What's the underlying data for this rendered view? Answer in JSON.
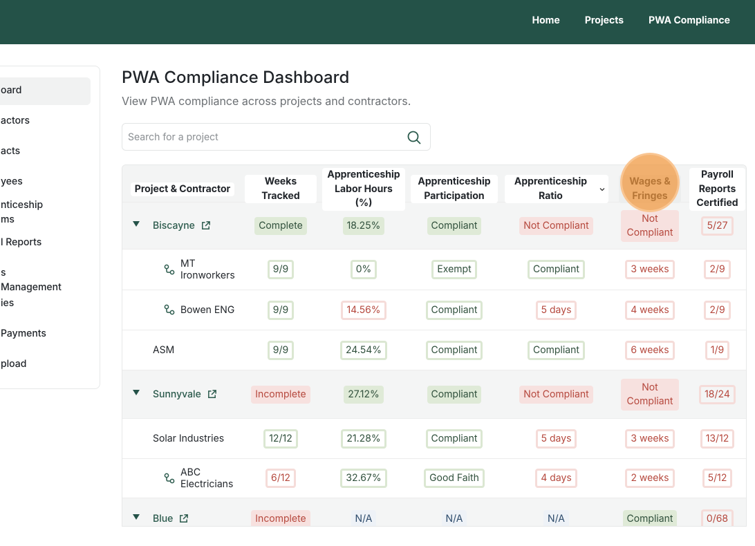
{
  "nav": {
    "items": [
      "Home",
      "Projects",
      "PWA Compliance"
    ]
  },
  "sidebar": {
    "items": [
      "oard",
      "actors",
      "acts",
      "yees",
      "nticeship ms",
      "l Reports",
      "s Management",
      "ies",
      "Payments",
      "pload"
    ],
    "active": 0
  },
  "header": {
    "title": "PWA Compliance Dashboard",
    "subtitle": "View PWA compliance across projects and contractors."
  },
  "search": {
    "placeholder": "Search for a project"
  },
  "table": {
    "columns": [
      "Project & Contractor",
      "Weeks Tracked",
      "Apprenticeship Labor Hours (%)",
      "Apprenticeship Participation",
      "Apprenticeship Ratio",
      "Wages & Fringes",
      "Payroll Reports Certified"
    ],
    "rows": [
      {
        "name": "Biscayne",
        "kind": "project",
        "cells": [
          {
            "text": "Complete",
            "tone": "good",
            "fill": true
          },
          {
            "text": "18.25%",
            "tone": "good",
            "fill": true
          },
          {
            "text": "Compliant",
            "tone": "good",
            "fill": true
          },
          {
            "text": "Not Compliant",
            "tone": "bad",
            "fill": true
          },
          {
            "text": "Not Compliant",
            "tone": "bad",
            "fill": true
          },
          {
            "text": "5/27",
            "tone": "bad",
            "fill": false
          }
        ]
      },
      {
        "name": "MT Ironworkers",
        "kind": "sub",
        "cells": [
          {
            "text": "9/9",
            "tone": "good",
            "fill": false
          },
          {
            "text": "0%",
            "tone": "good",
            "fill": false
          },
          {
            "text": "Exempt",
            "tone": "good",
            "fill": false
          },
          {
            "text": "Compliant",
            "tone": "good",
            "fill": false
          },
          {
            "text": "3 weeks",
            "tone": "bad",
            "fill": false
          },
          {
            "text": "2/9",
            "tone": "bad",
            "fill": false
          }
        ]
      },
      {
        "name": "Bowen ENG",
        "kind": "sub",
        "cells": [
          {
            "text": "9/9",
            "tone": "good",
            "fill": false
          },
          {
            "text": "14.56%",
            "tone": "bad",
            "fill": false
          },
          {
            "text": "Compliant",
            "tone": "good",
            "fill": false
          },
          {
            "text": "5 days",
            "tone": "bad",
            "fill": false
          },
          {
            "text": "4 weeks",
            "tone": "bad",
            "fill": false
          },
          {
            "text": "2/9",
            "tone": "bad",
            "fill": false
          }
        ]
      },
      {
        "name": "ASM",
        "kind": "plain",
        "cells": [
          {
            "text": "9/9",
            "tone": "good",
            "fill": false
          },
          {
            "text": "24.54%",
            "tone": "good",
            "fill": false
          },
          {
            "text": "Compliant",
            "tone": "good",
            "fill": false
          },
          {
            "text": "Compliant",
            "tone": "good",
            "fill": false
          },
          {
            "text": "6 weeks",
            "tone": "bad",
            "fill": false
          },
          {
            "text": "1/9",
            "tone": "bad",
            "fill": false
          }
        ]
      },
      {
        "name": "Sunnyvale",
        "kind": "project",
        "cells": [
          {
            "text": "Incomplete",
            "tone": "bad",
            "fill": true
          },
          {
            "text": "27.12%",
            "tone": "good",
            "fill": true
          },
          {
            "text": "Compliant",
            "tone": "good",
            "fill": true
          },
          {
            "text": "Not Compliant",
            "tone": "bad",
            "fill": true
          },
          {
            "text": "Not Compliant",
            "tone": "bad",
            "fill": true
          },
          {
            "text": "18/24",
            "tone": "bad",
            "fill": false
          }
        ]
      },
      {
        "name": "Solar Industries",
        "kind": "plain",
        "cells": [
          {
            "text": "12/12",
            "tone": "good",
            "fill": false
          },
          {
            "text": "21.28%",
            "tone": "good",
            "fill": false
          },
          {
            "text": "Compliant",
            "tone": "good",
            "fill": false
          },
          {
            "text": "5 days",
            "tone": "bad",
            "fill": false
          },
          {
            "text": "3 weeks",
            "tone": "bad",
            "fill": false
          },
          {
            "text": "13/12",
            "tone": "bad",
            "fill": false
          }
        ]
      },
      {
        "name": "ABC Electricians",
        "kind": "sub",
        "cells": [
          {
            "text": "6/12",
            "tone": "bad",
            "fill": false
          },
          {
            "text": "32.67%",
            "tone": "good",
            "fill": false
          },
          {
            "text": "Good Faith",
            "tone": "good",
            "fill": false
          },
          {
            "text": "4 days",
            "tone": "bad",
            "fill": false
          },
          {
            "text": "2 weeks",
            "tone": "bad",
            "fill": false
          },
          {
            "text": "5/12",
            "tone": "bad",
            "fill": false
          }
        ]
      },
      {
        "name": "Blue",
        "kind": "project",
        "cells": [
          {
            "text": "Incomplete",
            "tone": "bad",
            "fill": true
          },
          {
            "text": "N/A",
            "tone": "neutral",
            "fill": true
          },
          {
            "text": "N/A",
            "tone": "neutral",
            "fill": true
          },
          {
            "text": "N/A",
            "tone": "neutral",
            "fill": true
          },
          {
            "text": "Compliant",
            "tone": "good",
            "fill": true
          },
          {
            "text": "0/68",
            "tone": "bad",
            "fill": false
          }
        ]
      }
    ]
  }
}
